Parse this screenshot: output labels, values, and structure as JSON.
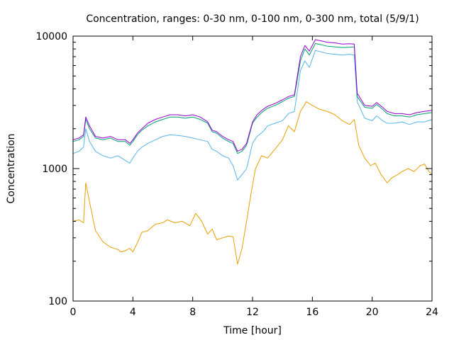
{
  "chart_data": {
    "type": "line",
    "title": "Concentration, ranges: 0-30 nm, 0-100 nm, 0-300 nm, total (5/9/1)",
    "xlabel": "Time [hour]",
    "ylabel": "Concentration",
    "yscale": "log",
    "xlim": [
      0,
      24
    ],
    "ylim": [
      100,
      10000
    ],
    "grid": false,
    "legend": "none",
    "xticks": [
      0,
      4,
      8,
      12,
      16,
      20,
      24
    ],
    "xtick_labels": [
      "0",
      "4",
      "8",
      "12",
      "16",
      "20",
      "24"
    ],
    "yticks": [
      100,
      1000,
      10000
    ],
    "ytick_labels": [
      "100",
      "1000",
      "10000"
    ],
    "series": [
      {
        "name": "0-30 nm",
        "color": "#e69f00",
        "x": [
          0,
          0.4,
          0.7,
          0.85,
          1.1,
          1.5,
          2.0,
          2.5,
          3.0,
          3.2,
          3.5,
          3.8,
          4.0,
          4.3,
          4.6,
          5.0,
          5.5,
          6.0,
          6.3,
          6.8,
          7.3,
          7.8,
          8.2,
          8.6,
          9.0,
          9.3,
          9.6,
          10.0,
          10.4,
          10.7,
          11.0,
          11.3,
          11.6,
          11.9,
          12.2,
          12.6,
          13.0,
          13.5,
          14.0,
          14.4,
          14.8,
          15.2,
          15.6,
          16.0,
          16.5,
          17.0,
          17.5,
          18.0,
          18.5,
          18.8,
          19.1,
          19.5,
          19.9,
          20.2,
          20.6,
          21.0,
          21.3,
          21.7,
          22.0,
          22.4,
          22.8,
          23.2,
          23.5,
          23.8,
          24.0
        ],
        "y": [
          400,
          410,
          390,
          780,
          560,
          340,
          280,
          255,
          245,
          235,
          240,
          250,
          235,
          275,
          330,
          340,
          380,
          390,
          410,
          390,
          400,
          370,
          460,
          400,
          320,
          350,
          290,
          300,
          310,
          305,
          190,
          250,
          400,
          650,
          1000,
          1250,
          1200,
          1400,
          1650,
          2100,
          1900,
          2700,
          3200,
          3000,
          2800,
          2700,
          2550,
          2300,
          2150,
          2350,
          1500,
          1200,
          1050,
          1100,
          900,
          780,
          850,
          900,
          950,
          1000,
          950,
          1050,
          1080,
          950,
          900
        ]
      },
      {
        "name": "0-100 nm",
        "color": "#56b4e9",
        "x": [
          0,
          0.4,
          0.7,
          0.85,
          1.1,
          1.5,
          2.0,
          2.5,
          3.0,
          3.5,
          3.8,
          4.0,
          4.3,
          4.6,
          5.0,
          5.5,
          6.0,
          6.5,
          7.0,
          7.5,
          8.0,
          8.5,
          9.0,
          9.3,
          9.6,
          10.0,
          10.4,
          10.7,
          11.0,
          11.3,
          11.6,
          12.0,
          12.3,
          12.7,
          13.0,
          13.5,
          14.0,
          14.4,
          14.8,
          15.2,
          15.5,
          15.8,
          16.2,
          16.6,
          17.0,
          17.5,
          18.0,
          18.5,
          18.8,
          19.0,
          19.5,
          20.0,
          20.3,
          20.7,
          21.0,
          21.5,
          22.0,
          22.5,
          23.0,
          23.5,
          24.0
        ],
        "y": [
          1300,
          1350,
          1450,
          2000,
          1600,
          1350,
          1250,
          1200,
          1250,
          1150,
          1100,
          1200,
          1350,
          1450,
          1550,
          1650,
          1750,
          1800,
          1780,
          1750,
          1700,
          1650,
          1600,
          1400,
          1350,
          1250,
          1200,
          1050,
          820,
          900,
          1000,
          1550,
          1750,
          1900,
          2100,
          2200,
          2300,
          2600,
          2700,
          5500,
          6500,
          5800,
          7800,
          7600,
          7400,
          7300,
          7200,
          7300,
          7200,
          3200,
          2400,
          2300,
          2500,
          2300,
          2200,
          2200,
          2250,
          2150,
          2250,
          2250,
          2350
        ]
      },
      {
        "name": "0-300 nm",
        "color": "#009e73",
        "x": [
          0,
          0.4,
          0.7,
          0.85,
          1.1,
          1.5,
          2.0,
          2.5,
          3.0,
          3.5,
          3.8,
          4.0,
          4.3,
          4.6,
          5.0,
          5.5,
          6.0,
          6.5,
          7.0,
          7.5,
          8.0,
          8.5,
          9.0,
          9.3,
          9.6,
          10.0,
          10.4,
          10.7,
          11.0,
          11.3,
          11.6,
          12.0,
          12.3,
          12.7,
          13.0,
          13.5,
          14.0,
          14.4,
          14.8,
          15.2,
          15.5,
          15.8,
          16.2,
          16.6,
          17.0,
          17.5,
          18.0,
          18.5,
          18.8,
          19.0,
          19.5,
          20.0,
          20.3,
          20.7,
          21.0,
          21.5,
          22.0,
          22.5,
          23.0,
          23.5,
          24.0
        ],
        "y": [
          1600,
          1650,
          1750,
          2350,
          2000,
          1700,
          1650,
          1700,
          1600,
          1600,
          1500,
          1600,
          1800,
          1950,
          2100,
          2250,
          2350,
          2450,
          2450,
          2400,
          2450,
          2350,
          2200,
          1900,
          1850,
          1700,
          1600,
          1550,
          1300,
          1350,
          1500,
          2200,
          2450,
          2700,
          2850,
          3000,
          3200,
          3400,
          3500,
          6500,
          8000,
          7200,
          8800,
          8600,
          8400,
          8300,
          8200,
          8250,
          8300,
          3500,
          2900,
          2850,
          3050,
          2800,
          2600,
          2500,
          2500,
          2450,
          2550,
          2600,
          2650
        ]
      },
      {
        "name": "total",
        "color": "#9400d3",
        "x": [
          0,
          0.4,
          0.7,
          0.85,
          1.1,
          1.5,
          2.0,
          2.5,
          3.0,
          3.5,
          3.8,
          4.0,
          4.3,
          4.6,
          5.0,
          5.5,
          6.0,
          6.5,
          7.0,
          7.5,
          8.0,
          8.5,
          9.0,
          9.3,
          9.6,
          10.0,
          10.4,
          10.7,
          11.0,
          11.3,
          11.6,
          12.0,
          12.3,
          12.7,
          13.0,
          13.5,
          14.0,
          14.4,
          14.8,
          15.2,
          15.5,
          15.8,
          16.2,
          16.6,
          17.0,
          17.5,
          18.0,
          18.5,
          18.8,
          19.0,
          19.5,
          20.0,
          20.3,
          20.7,
          21.0,
          21.5,
          22.0,
          22.5,
          23.0,
          23.5,
          24.0
        ],
        "y": [
          1650,
          1700,
          1800,
          2450,
          2100,
          1750,
          1700,
          1750,
          1650,
          1650,
          1550,
          1650,
          1850,
          2000,
          2200,
          2350,
          2450,
          2550,
          2550,
          2500,
          2550,
          2450,
          2250,
          1950,
          1900,
          1750,
          1650,
          1600,
          1350,
          1400,
          1550,
          2250,
          2550,
          2800,
          2950,
          3100,
          3300,
          3500,
          3600,
          7000,
          8500,
          7700,
          9400,
          9200,
          9000,
          8900,
          8700,
          8750,
          8700,
          3700,
          3000,
          2950,
          3150,
          2900,
          2700,
          2600,
          2600,
          2550,
          2650,
          2700,
          2750
        ]
      }
    ]
  }
}
